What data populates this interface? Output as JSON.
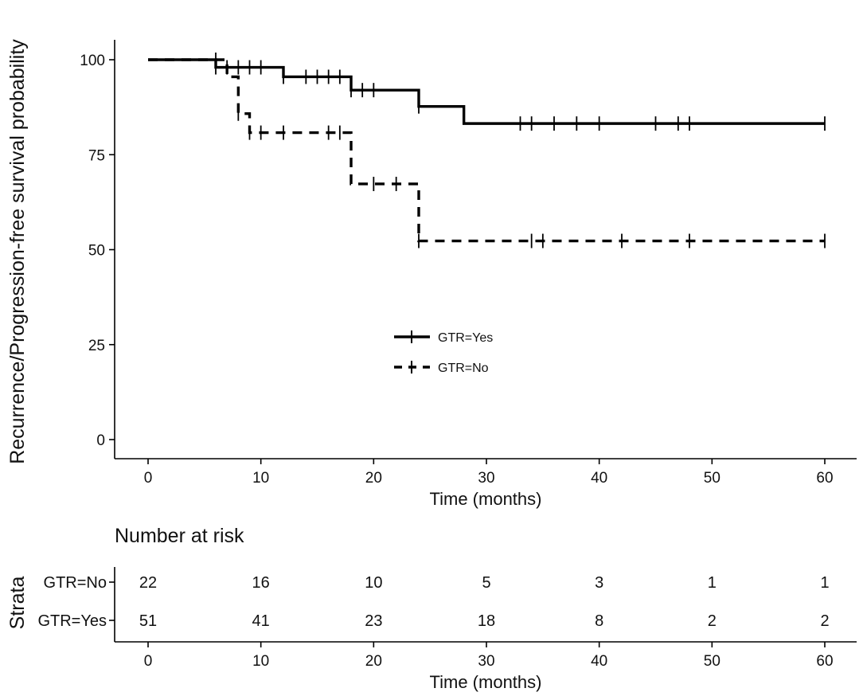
{
  "chart_data": {
    "type": "line",
    "subtype": "kaplan-meier step",
    "title": "",
    "ylabel": "Recurrence/Progression-free survival probability",
    "xlabel": "Time (months)",
    "xlim": [
      0,
      60
    ],
    "ylim": [
      0,
      100
    ],
    "xticks": [
      0,
      10,
      20,
      30,
      40,
      50,
      60
    ],
    "yticks": [
      0,
      25,
      50,
      75,
      100
    ],
    "legend": {
      "placement": "center",
      "entries": [
        "GTR=Yes",
        "GTR=No"
      ]
    },
    "series": [
      {
        "name": "GTR=Yes",
        "line_style": "solid",
        "steps": [
          [
            0,
            100
          ],
          [
            6,
            98
          ],
          [
            12,
            95.5
          ],
          [
            18,
            92
          ],
          [
            24,
            87.7
          ],
          [
            28,
            83.2
          ],
          [
            60,
            83.2
          ]
        ],
        "censor_times": [
          6,
          7,
          8,
          9,
          10,
          12,
          14,
          15,
          16,
          17,
          18,
          19,
          20,
          24,
          33,
          34,
          36,
          38,
          40,
          45,
          47,
          48,
          60
        ]
      },
      {
        "name": "GTR=No",
        "line_style": "dashed",
        "steps": [
          [
            0,
            100
          ],
          [
            6,
            100
          ],
          [
            7,
            95.5
          ],
          [
            8,
            90.9
          ],
          [
            8,
            85.8
          ],
          [
            9,
            80.8
          ],
          [
            18,
            80.8
          ],
          [
            18,
            67.3
          ],
          [
            24,
            67.3
          ],
          [
            24,
            52.3
          ],
          [
            60,
            52.3
          ]
        ],
        "censor_times": [
          6,
          8,
          9,
          10,
          12,
          16,
          17,
          20,
          22,
          24,
          34,
          35,
          42,
          48,
          60
        ]
      }
    ],
    "risk_table": {
      "title": "Number at risk",
      "strata_label": "Strata",
      "xlabel": "Time (months)",
      "times": [
        0,
        10,
        20,
        30,
        40,
        50,
        60
      ],
      "rows": [
        {
          "name": "GTR=No",
          "counts": [
            22,
            16,
            10,
            5,
            3,
            1,
            1
          ]
        },
        {
          "name": "GTR=Yes",
          "counts": [
            51,
            41,
            23,
            18,
            8,
            2,
            2
          ]
        }
      ]
    }
  }
}
